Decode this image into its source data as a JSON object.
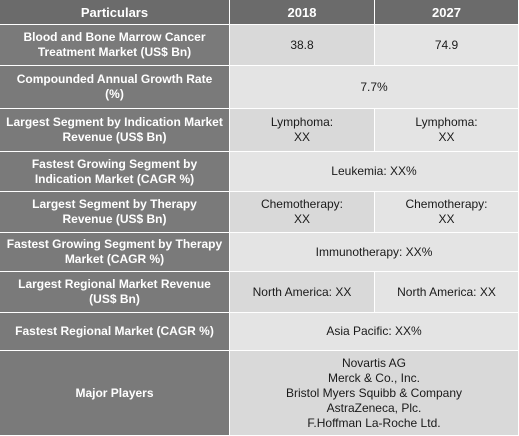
{
  "header": {
    "particulars": "Particulars",
    "y1": "2018",
    "y2": "2027"
  },
  "rows": [
    {
      "label": "Blood and Bone Marrow Cancer Treatment Market (US$ Bn)",
      "v1": "38.8",
      "v2": "74.9"
    },
    {
      "label": "Compounded Annual Growth Rate (%)",
      "span": "7.7%"
    },
    {
      "label": "Largest Segment by Indication Market Revenue (US$ Bn)",
      "v1": "Lymphoma:\nXX",
      "v2": "Lymphoma:\nXX"
    },
    {
      "label": "Fastest Growing Segment by Indication Market (CAGR %)",
      "span": "Leukemia:  XX%"
    },
    {
      "label": "Largest Segment by Therapy Revenue (US$ Bn)",
      "v1": "Chemotherapy:\nXX",
      "v2": "Chemotherapy:\nXX"
    },
    {
      "label": "Fastest Growing Segment by Therapy Market (CAGR %)",
      "span": "Immunotherapy:  XX%"
    },
    {
      "label": "Largest Regional Market Revenue (US$ Bn)",
      "v1": "North America: XX",
      "v2": "North America: XX"
    },
    {
      "label": "Fastest Regional Market (CAGR %)",
      "span": "Asia Pacific: XX%"
    }
  ],
  "players": {
    "label": "Major Players",
    "list": "Novartis AG\nMerck & Co., Inc.\nBristol Myers Squibb & Company\nAstraZeneca, Plc.\nF.Hoffman La-Roche Ltd."
  }
}
